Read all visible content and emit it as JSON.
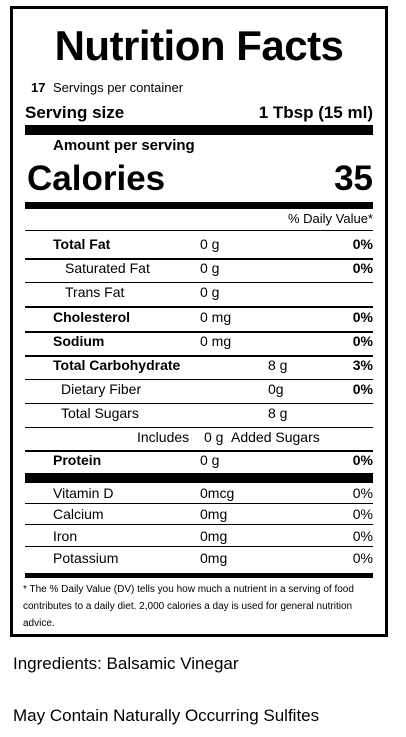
{
  "label": {
    "title": "Nutrition Facts",
    "servings_count": "17",
    "servings_text": "Servings per container",
    "serving_size_label": "Serving size",
    "serving_size_value": "1 Tbsp (15 ml)",
    "amount_per_serving": "Amount per serving",
    "calories_label": "Calories",
    "calories_value": "35",
    "daily_value_header": "% Daily Value*",
    "nutrients": [
      {
        "name": "Total Fat",
        "amount": "0 g",
        "dv": "0%"
      },
      {
        "name": "Saturated Fat",
        "amount": "0 g",
        "dv": "0%"
      },
      {
        "name": "Trans Fat",
        "amount": "0 g",
        "dv": ""
      },
      {
        "name": "Cholesterol",
        "amount": "0 mg",
        "dv": "0%"
      },
      {
        "name": "Sodium",
        "amount": "0 mg",
        "dv": "0%"
      },
      {
        "name": "Total Carbohydrate",
        "amount": "8 g",
        "dv": "3%"
      },
      {
        "name": "Dietary Fiber",
        "amount": "0g",
        "dv": "0%"
      },
      {
        "name": "Total Sugars",
        "amount": "8 g",
        "dv": ""
      },
      {
        "name": "Includes",
        "amount": "0 g",
        "suffix": "Added Sugars"
      },
      {
        "name": "Protein",
        "amount": "0 g",
        "dv": "0%"
      }
    ],
    "vitamins": [
      {
        "name": "Vitamin D",
        "amount": "0mcg",
        "dv": "0%"
      },
      {
        "name": "Calcium",
        "amount": "0mg",
        "dv": "0%"
      },
      {
        "name": "Iron",
        "amount": "0mg",
        "dv": "0%"
      },
      {
        "name": "Potassium",
        "amount": "0mg",
        "dv": "0%"
      }
    ],
    "footnote": "* The % Daily Value (DV) tells you how much a nutrient in a serving of food contributes to a daily diet.  2,000 calories a day is used for general nutrition advice."
  },
  "ingredients": "Ingredients: Balsamic Vinegar",
  "allergen_note": "May Contain Naturally Occurring Sulfites"
}
